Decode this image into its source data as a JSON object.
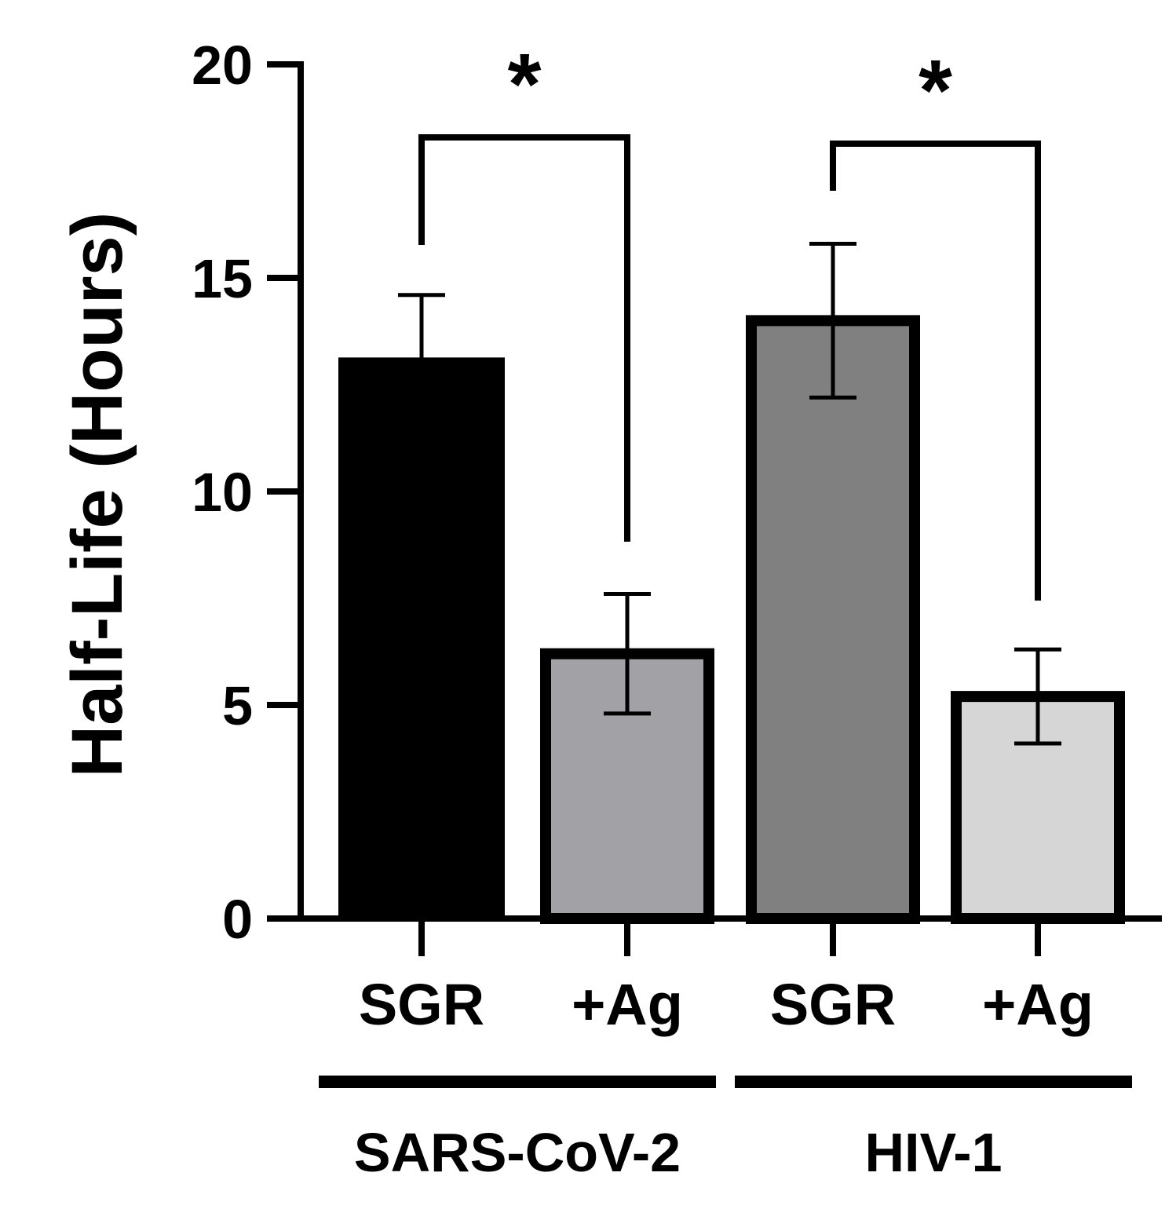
{
  "chart_data": {
    "type": "bar",
    "ylabel": "Half-Life (Hours)",
    "ylim": [
      0,
      20
    ],
    "yticks": [
      0,
      5,
      10,
      15,
      20
    ],
    "categories": [
      "SGR",
      "+Ag",
      "SGR",
      "+Ag"
    ],
    "values": [
      13.1,
      6.2,
      14.0,
      5.2
    ],
    "errors": [
      1.5,
      1.4,
      1.8,
      1.1
    ],
    "colors": [
      "#000000",
      "#a2a2a6",
      "#808080",
      "#d6d6d6"
    ],
    "groups": [
      {
        "label": "SARS-CoV-2",
        "bars": [
          0,
          1
        ]
      },
      {
        "label": "HIV-1",
        "bars": [
          2,
          3
        ]
      }
    ],
    "significance": [
      {
        "bars": [
          0,
          1
        ],
        "label": "*"
      },
      {
        "bars": [
          2,
          3
        ],
        "label": "*"
      }
    ],
    "grid": false
  }
}
